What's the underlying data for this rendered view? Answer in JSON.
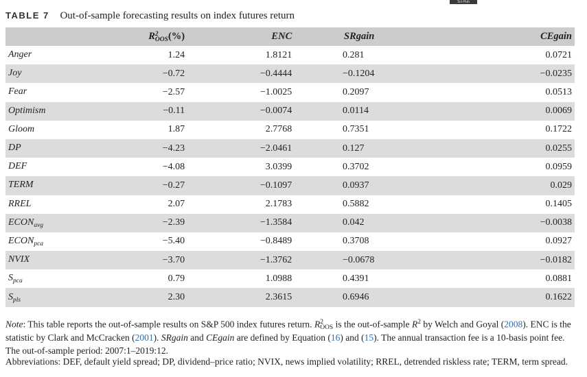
{
  "badge": "Sci-Hub",
  "caption": {
    "label": "TABLE 7",
    "title": "Out-of-sample forecasting results on index futures return"
  },
  "columns": {
    "r2_main": "R",
    "r2_sup": "2",
    "r2_sub": "OOS",
    "r2_unit": "(%)",
    "enc": "ENC",
    "srgain": "SRgain",
    "cegain": "CEgain"
  },
  "rows": [
    {
      "name": "Anger",
      "sub": "",
      "r2": "1.24",
      "enc": "1.8121",
      "sr": "0.281",
      "ce": "0.0721"
    },
    {
      "name": "Joy",
      "sub": "",
      "r2": "−0.72",
      "enc": "−0.4444",
      "sr": "−0.1204",
      "ce": "−0.0235"
    },
    {
      "name": "Fear",
      "sub": "",
      "r2": "−2.57",
      "enc": "−1.0025",
      "sr": "0.2097",
      "ce": "0.0513"
    },
    {
      "name": "Optimism",
      "sub": "",
      "r2": "−0.11",
      "enc": "−0.0074",
      "sr": "0.0114",
      "ce": "0.0069"
    },
    {
      "name": "Gloom",
      "sub": "",
      "r2": "1.87",
      "enc": "2.7768",
      "sr": "0.7351",
      "ce": "0.1722"
    },
    {
      "name": "DP",
      "sub": "",
      "r2": "−4.23",
      "enc": "−2.0461",
      "sr": "0.127",
      "ce": "0.0255"
    },
    {
      "name": "DEF",
      "sub": "",
      "r2": "−4.08",
      "enc": "3.0399",
      "sr": "0.3702",
      "ce": "0.0959"
    },
    {
      "name": "TERM",
      "sub": "",
      "r2": "−0.27",
      "enc": "−0.1097",
      "sr": "0.0937",
      "ce": "0.029"
    },
    {
      "name": "RREL",
      "sub": "",
      "r2": "2.07",
      "enc": "2.1783",
      "sr": "0.5882",
      "ce": "0.1405"
    },
    {
      "name": "ECON",
      "sub": "avg",
      "r2": "−2.39",
      "enc": "−1.3584",
      "sr": "0.042",
      "ce": "−0.0038"
    },
    {
      "name": "ECON",
      "sub": "pca",
      "r2": "−5.40",
      "enc": "−0.8489",
      "sr": "0.3708",
      "ce": "0.0927"
    },
    {
      "name": "NVIX",
      "sub": "",
      "r2": "−3.70",
      "enc": "−1.3762",
      "sr": "−0.0678",
      "ce": "−0.0182"
    },
    {
      "name": "S",
      "sub": "pca",
      "r2": "0.79",
      "enc": "1.0988",
      "sr": "0.4391",
      "ce": "0.0881"
    },
    {
      "name": "S",
      "sub": "pls",
      "r2": "2.30",
      "enc": "2.3615",
      "sr": "0.6946",
      "ce": "0.1622"
    }
  ],
  "note": {
    "label": "Note",
    "t1": ": This table reports the out-of-sample results on S&P 500 index futures return. ",
    "r2": "R",
    "r2_sup": "2",
    "r2_sub": "OOS",
    "t2": " is the out-of-sample ",
    "r2b": "R",
    "r2b_sup": "2",
    "t3": " by Welch and Goyal (",
    "ref1": "2008",
    "t4": "). ENC is the statistic by Clark and McCracken (",
    "ref2": "2001",
    "t5": "). ",
    "sr": "SRgain",
    "t6": " and ",
    "ce": "CEgain",
    "t7": " are defined by Equation (",
    "ref3": "16",
    "t8": ") and (",
    "ref4": "15",
    "t9": "). The annual transaction fee is a 10-basis point fee. The out-of-sample period: 2007:1–2019:12."
  },
  "abbreviations": "Abbreviations: DEF, default yield spread; DP, dividend–price ratio; NVIX, news implied volatility; RREL, detrended riskless rate; TERM, term spread."
}
